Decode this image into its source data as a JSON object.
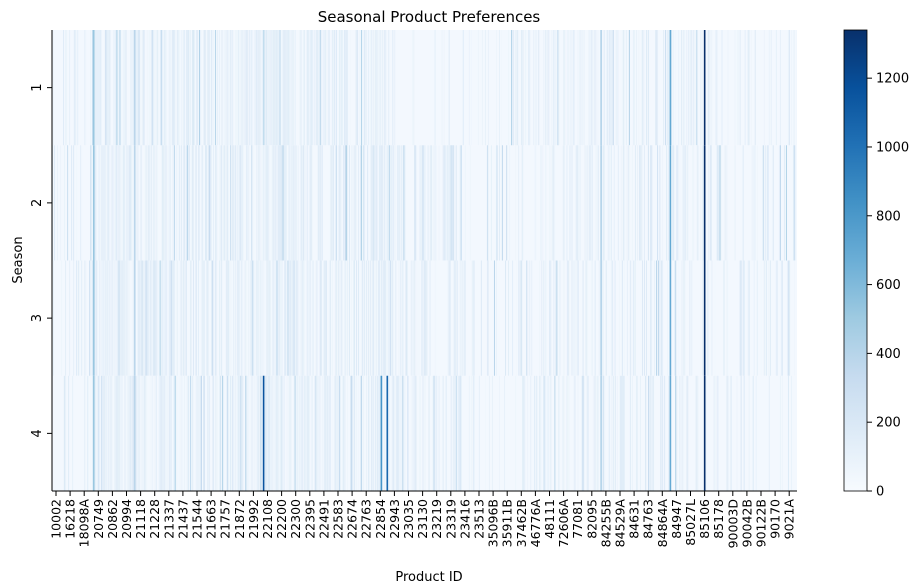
{
  "chart_data": {
    "type": "heatmap",
    "title": "Seasonal Product Preferences",
    "xlabel": "Product ID",
    "ylabel": "Season",
    "y_categories": [
      "1",
      "2",
      "3",
      "4"
    ],
    "x_tick_labels": [
      "10002",
      "16218",
      "18098A",
      "20749",
      "20862",
      "20994",
      "21118",
      "21228",
      "21337",
      "21437",
      "21544",
      "21663",
      "21757",
      "21872",
      "21992",
      "22108",
      "22200",
      "22300",
      "22395",
      "22491",
      "22583",
      "22674",
      "22763",
      "22854",
      "22943",
      "23035",
      "23130",
      "23219",
      "23319",
      "23416",
      "23513",
      "35096B",
      "35911B",
      "37462B",
      "46776A",
      "48111",
      "72606A",
      "77081",
      "82095",
      "84255B",
      "84529A",
      "84631",
      "84763",
      "84864A",
      "84947",
      "85027L",
      "85106",
      "85178",
      "90003D",
      "90042B",
      "90122B",
      "90170",
      "9021A"
    ],
    "colormap": "Blues",
    "colorbar": {
      "min": 0,
      "max": 1340,
      "ticks": [
        0,
        200,
        400,
        600,
        800,
        1000,
        1200
      ]
    },
    "highlights": [
      {
        "x_position": 0.875,
        "seasons": [
          "1",
          "2",
          "3",
          "4"
        ],
        "value": 1340
      },
      {
        "x_position": 0.283,
        "seasons": [
          "4"
        ],
        "value": 1150
      },
      {
        "x_position": 0.449,
        "seasons": [
          "4"
        ],
        "value": 1050
      },
      {
        "x_position": 0.441,
        "seasons": [
          "4"
        ],
        "value": 820
      },
      {
        "x_position": 0.829,
        "seasons": [
          "1",
          "2",
          "3",
          "4"
        ],
        "value": 700
      },
      {
        "x_position": 0.055,
        "seasons": [
          "1",
          "2",
          "3",
          "4"
        ],
        "value": 520
      },
      {
        "x_position": 0.11,
        "seasons": [
          "1",
          "2",
          "3",
          "4"
        ],
        "value": 380
      },
      {
        "x_position": 0.736,
        "seasons": [
          "1",
          "2",
          "3",
          "4"
        ],
        "value": 420
      }
    ],
    "background_value": 30
  }
}
